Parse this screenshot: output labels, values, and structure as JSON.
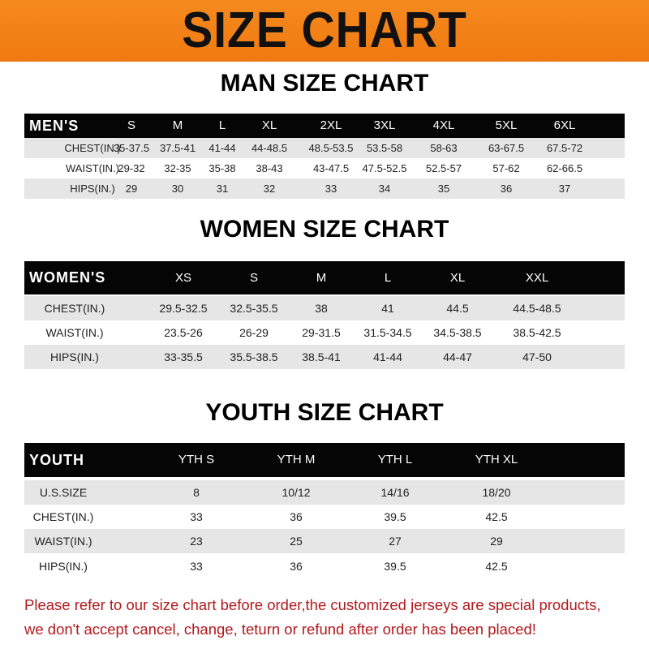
{
  "banner_title": "SIZE CHART",
  "men": {
    "title": "MAN SIZE CHART",
    "header": [
      "MEN'S",
      "S",
      "M",
      "L",
      "XL",
      "2XL",
      "3XL",
      "4XL",
      "5XL",
      "6XL"
    ],
    "rows": [
      [
        "CHEST(IN.)",
        "35-37.5",
        "37.5-41",
        "41-44",
        "44-48.5",
        "48.5-53.5",
        "53.5-58",
        "58-63",
        "63-67.5",
        "67.5-72"
      ],
      [
        "WAIST(IN.)",
        "29-32",
        "32-35",
        "35-38",
        "38-43",
        "43-47.5",
        "47.5-52.5",
        "52.5-57",
        "57-62",
        "62-66.5"
      ],
      [
        "HIPS(IN.)",
        "29",
        "30",
        "31",
        "32",
        "33",
        "34",
        "35",
        "36",
        "37"
      ]
    ]
  },
  "women": {
    "title": "WOMEN SIZE CHART",
    "header": [
      "WOMEN'S",
      "XS",
      "S",
      "M",
      "L",
      "XL",
      "XXL"
    ],
    "rows": [
      [
        "CHEST(IN.)",
        "29.5-32.5",
        "32.5-35.5",
        "38",
        "41",
        "44.5",
        "44.5-48.5"
      ],
      [
        "WAIST(IN.)",
        "23.5-26",
        "26-29",
        "29-31.5",
        "31.5-34.5",
        "34.5-38.5",
        "38.5-42.5"
      ],
      [
        "HIPS(IN.)",
        "33-35.5",
        "35.5-38.5",
        "38.5-41",
        "41-44",
        "44-47",
        "47-50"
      ]
    ]
  },
  "youth": {
    "title": "YOUTH SIZE CHART",
    "header": [
      "YOUTH",
      "YTH S",
      "YTH M",
      "YTH L",
      "YTH XL"
    ],
    "rows": [
      [
        "U.S.SIZE",
        "8",
        "10/12",
        "14/16",
        "18/20"
      ],
      [
        "CHEST(IN.)",
        "33",
        "36",
        "39.5",
        "42.5"
      ],
      [
        "WAIST(IN.)",
        "23",
        "25",
        "27",
        "29"
      ],
      [
        "HIPS(IN.)",
        "33",
        "36",
        "39.5",
        "42.5"
      ]
    ]
  },
  "notice": {
    "line1": "Please refer to our size chart before order,the customized jerseys are special products,",
    "line2": "we don't accept cancel, change, teturn or refund after order has been placed!"
  },
  "colors": {
    "banner": "#f58a1f",
    "header_row": "#050505",
    "stripe": "#e6e6e6",
    "notice": "#b3191c"
  }
}
